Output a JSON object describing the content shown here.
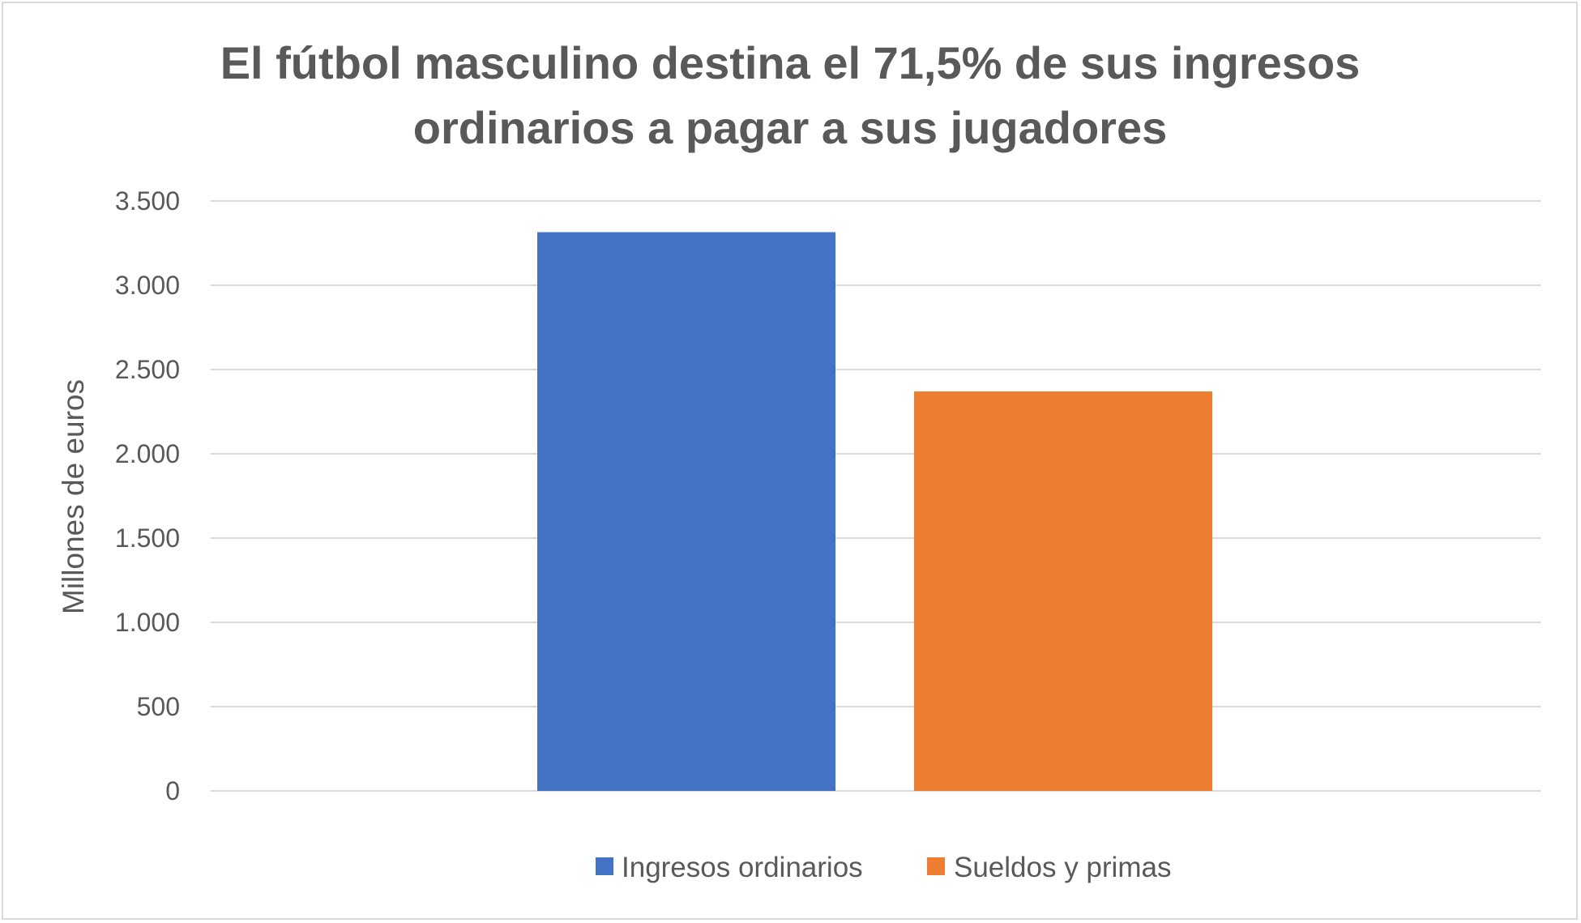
{
  "chart_data": {
    "type": "bar",
    "title_lines": [
      "El fútbol masculino destina el 71,5% de sus ingresos",
      "ordinarios a pagar a sus jugadores"
    ],
    "ylabel": "Millones de euros",
    "xlabel": "",
    "ylim": [
      0,
      3500
    ],
    "yticks": [
      0,
      500,
      1000,
      1500,
      2000,
      2500,
      3000,
      3500
    ],
    "ytick_labels": [
      "0",
      "500",
      "1.000",
      "1.500",
      "2.000",
      "2.500",
      "3.000",
      "3.500"
    ],
    "grid": true,
    "legend_position": "bottom",
    "series": [
      {
        "name": "Ingresos ordinarios",
        "value": 3315,
        "color": "#4472c4"
      },
      {
        "name": "Sueldos y primas",
        "value": 2370,
        "color": "#ed7d31"
      }
    ]
  }
}
